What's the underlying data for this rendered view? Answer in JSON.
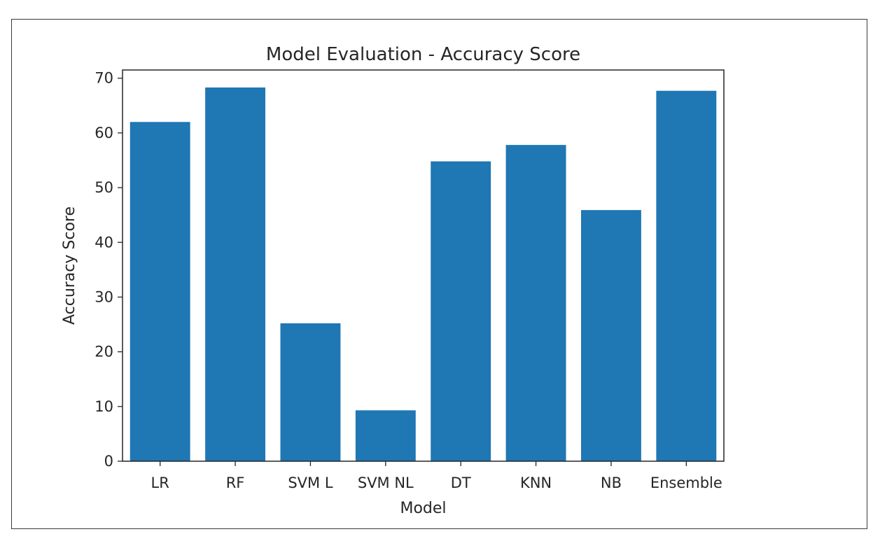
{
  "chart_data": {
    "type": "bar",
    "title": "Model Evaluation - Accuracy Score",
    "xlabel": "Model",
    "ylabel": "Accuracy Score",
    "categories": [
      "LR",
      "RF",
      "SVM L",
      "SVM NL",
      "DT",
      "KNN",
      "NB",
      "Ensemble"
    ],
    "values": [
      62.0,
      68.3,
      25.2,
      9.3,
      54.8,
      57.8,
      45.9,
      67.7
    ],
    "ylim": [
      0,
      71.5
    ],
    "yticks": [
      0,
      10,
      20,
      30,
      40,
      50,
      60,
      70
    ],
    "bar_color": "#1f77b4",
    "grid": false,
    "legend": "none"
  }
}
